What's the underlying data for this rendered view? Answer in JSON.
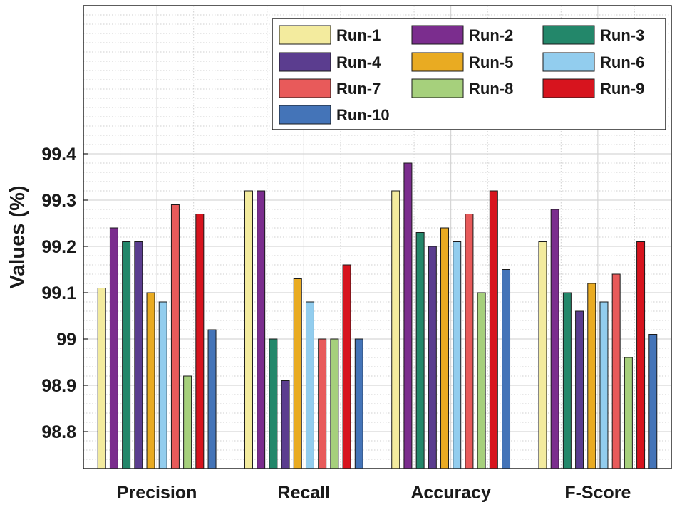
{
  "chart_data": {
    "type": "bar",
    "title": "",
    "xlabel": "",
    "ylabel": "Values (%)",
    "ylim": [
      98.72,
      99.72
    ],
    "yticks": [
      98.8,
      98.9,
      99.0,
      99.1,
      99.2,
      99.3,
      99.4
    ],
    "ytick_labels": [
      "98.8",
      "98.9",
      "99",
      "99.1",
      "99.2",
      "99.3",
      "99.4"
    ],
    "grid": true,
    "legend_position": "top-right",
    "categories": [
      "Precision",
      "Recall",
      "Accuracy",
      "F-Score"
    ],
    "series": [
      {
        "name": "Run-1",
        "color": "#f3eb9e",
        "values": [
          99.11,
          99.32,
          99.32,
          99.21
        ]
      },
      {
        "name": "Run-2",
        "color": "#7b2d8e",
        "values": [
          99.24,
          99.32,
          99.38,
          99.28
        ]
      },
      {
        "name": "Run-3",
        "color": "#23876a",
        "values": [
          99.21,
          99.0,
          99.23,
          99.1
        ]
      },
      {
        "name": "Run-4",
        "color": "#5b3d8f",
        "values": [
          99.21,
          98.91,
          99.2,
          99.06
        ]
      },
      {
        "name": "Run-5",
        "color": "#e9ab22",
        "values": [
          99.1,
          99.13,
          99.24,
          99.12
        ]
      },
      {
        "name": "Run-6",
        "color": "#92cdee",
        "values": [
          99.08,
          99.08,
          99.21,
          99.08
        ]
      },
      {
        "name": "Run-7",
        "color": "#e85a5a",
        "values": [
          99.29,
          99.0,
          99.27,
          99.14
        ]
      },
      {
        "name": "Run-8",
        "color": "#a6d07c",
        "values": [
          98.92,
          99.0,
          99.1,
          98.96
        ]
      },
      {
        "name": "Run-9",
        "color": "#d7141e",
        "values": [
          99.27,
          99.16,
          99.32,
          99.21
        ]
      },
      {
        "name": "Run-10",
        "color": "#4474b8",
        "values": [
          99.02,
          99.0,
          99.15,
          99.01
        ]
      }
    ]
  }
}
